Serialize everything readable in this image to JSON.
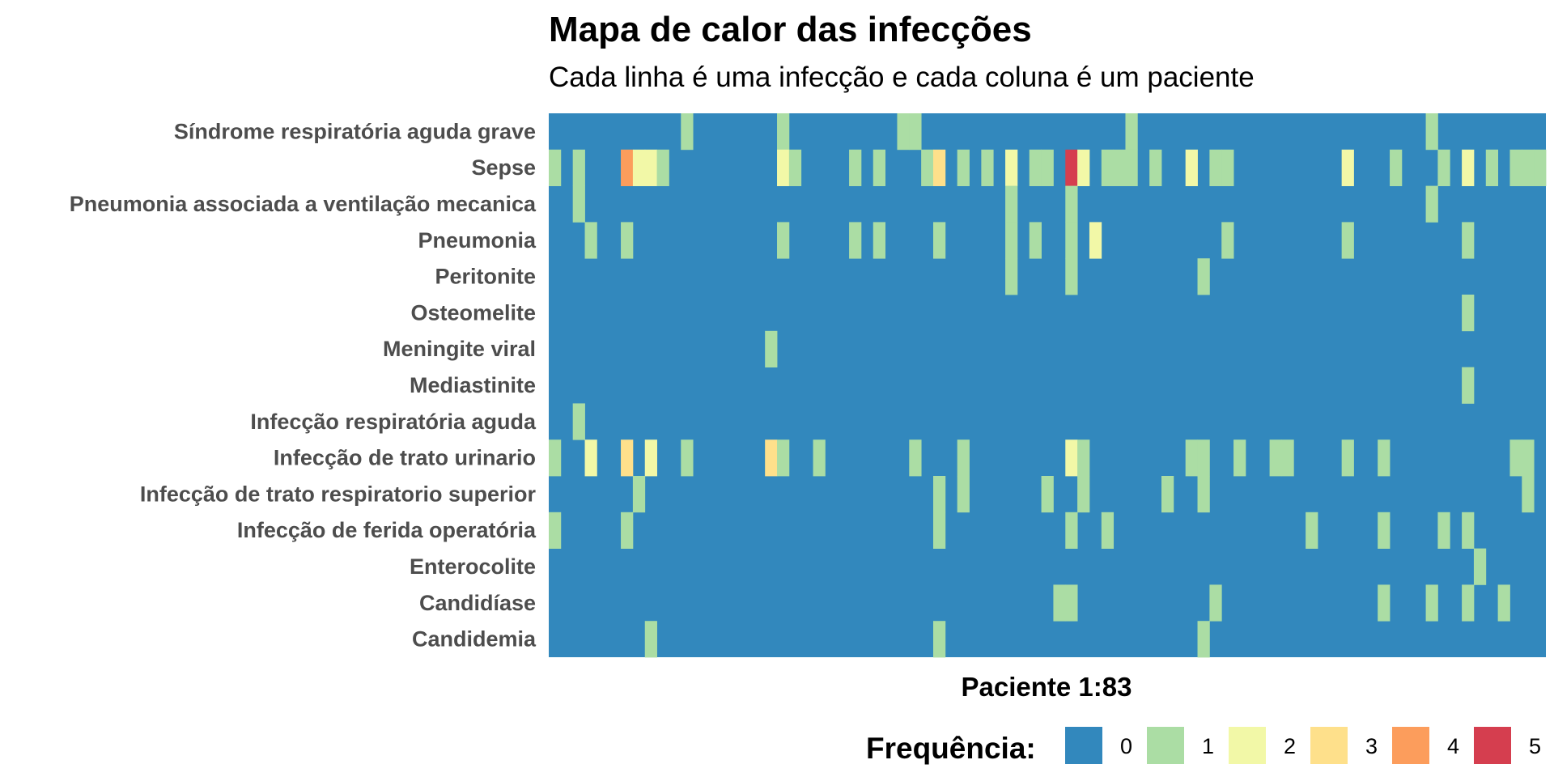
{
  "chart_data": {
    "type": "heatmap",
    "title": "Mapa de calor das infecções",
    "subtitle": "Cada linha é uma infecção e cada coluna é um paciente",
    "xlabel": "Paciente 1:83",
    "n_columns": 83,
    "rows": [
      "Síndrome respiratória aguda grave",
      "Sepse",
      "Pneumonia associada a ventilação mecanica",
      "Pneumonia",
      "Peritonite",
      "Osteomelite",
      "Meningite viral",
      "Mediastinite",
      "Infecção respiratória aguda",
      "Infecção de trato urinario",
      "Infecção de trato respiratorio superior",
      "Infecção de ferida operatória",
      "Enterocolite",
      "Candidíase",
      "Candidemia"
    ],
    "cells": {
      "Síndrome respiratória aguda grave": [
        [
          12,
          1
        ],
        [
          20,
          1
        ],
        [
          30,
          1
        ],
        [
          31,
          1
        ],
        [
          49,
          1
        ],
        [
          74,
          1
        ]
      ],
      "Sepse": [
        [
          1,
          1
        ],
        [
          3,
          1
        ],
        [
          7,
          4
        ],
        [
          8,
          2
        ],
        [
          9,
          2
        ],
        [
          10,
          1
        ],
        [
          20,
          2
        ],
        [
          21,
          1
        ],
        [
          26,
          1
        ],
        [
          28,
          1
        ],
        [
          32,
          1
        ],
        [
          33,
          3
        ],
        [
          35,
          1
        ],
        [
          37,
          1
        ],
        [
          39,
          2
        ],
        [
          41,
          1
        ],
        [
          42,
          1
        ],
        [
          44,
          5
        ],
        [
          45,
          2
        ],
        [
          47,
          1
        ],
        [
          48,
          1
        ],
        [
          49,
          1
        ],
        [
          51,
          1
        ],
        [
          54,
          2
        ],
        [
          56,
          1
        ],
        [
          57,
          1
        ],
        [
          67,
          2
        ],
        [
          71,
          1
        ],
        [
          75,
          1
        ],
        [
          77,
          2
        ],
        [
          79,
          1
        ],
        [
          81,
          1
        ],
        [
          82,
          1
        ],
        [
          83,
          1
        ]
      ],
      "Pneumonia associada a ventilação mecanica": [
        [
          3,
          1
        ],
        [
          39,
          1
        ],
        [
          44,
          1
        ],
        [
          74,
          1
        ]
      ],
      "Pneumonia": [
        [
          4,
          1
        ],
        [
          7,
          1
        ],
        [
          20,
          1
        ],
        [
          26,
          1
        ],
        [
          28,
          1
        ],
        [
          33,
          1
        ],
        [
          39,
          1
        ],
        [
          41,
          1
        ],
        [
          44,
          1
        ],
        [
          46,
          2
        ],
        [
          57,
          1
        ],
        [
          67,
          1
        ],
        [
          77,
          1
        ]
      ],
      "Peritonite": [
        [
          39,
          1
        ],
        [
          44,
          1
        ],
        [
          55,
          1
        ]
      ],
      "Osteomelite": [
        [
          77,
          1
        ]
      ],
      "Meningite viral": [
        [
          19,
          1
        ]
      ],
      "Mediastinite": [
        [
          77,
          1
        ]
      ],
      "Infecção respiratória aguda": [
        [
          3,
          1
        ]
      ],
      "Infecção de trato urinario": [
        [
          1,
          1
        ],
        [
          4,
          2
        ],
        [
          7,
          3
        ],
        [
          9,
          2
        ],
        [
          12,
          1
        ],
        [
          19,
          3
        ],
        [
          20,
          1
        ],
        [
          23,
          1
        ],
        [
          31,
          1
        ],
        [
          35,
          1
        ],
        [
          44,
          2
        ],
        [
          45,
          1
        ],
        [
          54,
          1
        ],
        [
          55,
          1
        ],
        [
          58,
          1
        ],
        [
          61,
          1
        ],
        [
          62,
          1
        ],
        [
          67,
          1
        ],
        [
          70,
          1
        ],
        [
          81,
          1
        ],
        [
          82,
          1
        ]
      ],
      "Infecção de trato respiratorio superior": [
        [
          8,
          1
        ],
        [
          33,
          1
        ],
        [
          35,
          1
        ],
        [
          42,
          1
        ],
        [
          45,
          1
        ],
        [
          52,
          1
        ],
        [
          55,
          1
        ],
        [
          82,
          1
        ]
      ],
      "Infecção de ferida operatória": [
        [
          1,
          1
        ],
        [
          7,
          1
        ],
        [
          33,
          1
        ],
        [
          44,
          1
        ],
        [
          47,
          1
        ],
        [
          64,
          1
        ],
        [
          70,
          1
        ],
        [
          75,
          1
        ],
        [
          77,
          1
        ]
      ],
      "Enterocolite": [
        [
          78,
          1
        ]
      ],
      "Candidíase": [
        [
          43,
          1
        ],
        [
          44,
          1
        ],
        [
          56,
          1
        ],
        [
          70,
          1
        ],
        [
          74,
          1
        ],
        [
          77,
          1
        ],
        [
          80,
          1
        ]
      ],
      "Candidemia": [
        [
          9,
          1
        ],
        [
          33,
          1
        ],
        [
          55,
          1
        ]
      ]
    },
    "legend": {
      "title": "Frequência:",
      "position": "bottom-right",
      "levels": [
        {
          "value": 0,
          "label": "0",
          "color": "#3288bd"
        },
        {
          "value": 1,
          "label": "1",
          "color": "#abdda4"
        },
        {
          "value": 2,
          "label": "2",
          "color": "#f2f8a7"
        },
        {
          "value": 3,
          "label": "3",
          "color": "#fee08b"
        },
        {
          "value": 4,
          "label": "4",
          "color": "#fc9d5c"
        },
        {
          "value": 5,
          "label": "5",
          "color": "#d53e4f"
        }
      ]
    }
  }
}
